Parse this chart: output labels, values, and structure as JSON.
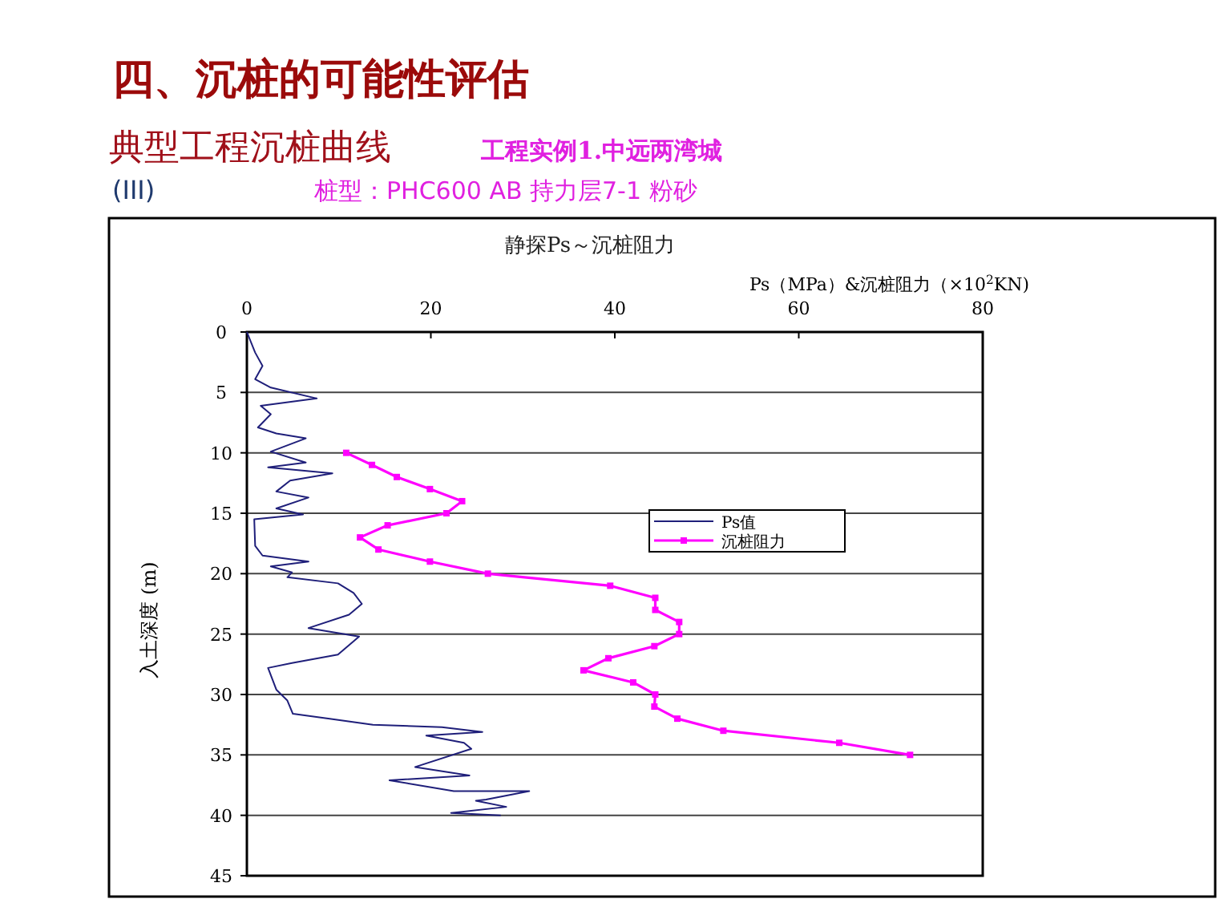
{
  "chart_data": {
    "type": "line",
    "title": "四、沉桩的可能性评估",
    "subtitle": "典型工程沉桩曲线",
    "annotations": [
      "工程实例1.中远两湾城",
      "(III)",
      "桩型：PHC600 AB   持力层7-1   粉砂",
      "静探Ps～沉桩阻力"
    ],
    "xlabel": "Ps（MPa）&沉桩阻力（×10$^{2}$KN)",
    "ylabel": "入土深度 (m)",
    "xlim": [
      0,
      80
    ],
    "xticks": [
      0,
      20,
      40,
      60,
      80
    ],
    "ylim": [
      45,
      0
    ],
    "yticks": [
      0,
      5,
      10,
      15,
      20,
      25,
      30,
      35,
      40,
      45
    ],
    "grid": "y",
    "legend": "right",
    "series": [
      {
        "name": "Ps值",
        "color": "#1f1f7a",
        "marker": "none",
        "x": [
          0,
          0.9,
          1.7,
          0.9,
          2.6,
          7.6,
          1.5,
          2.6,
          1.2,
          3.2,
          6.4,
          2.6,
          6.4,
          2.3,
          9.3,
          4.7,
          3.2,
          6.7,
          3.2,
          6.1,
          0.8,
          0.9,
          1.7,
          6.7,
          2.6,
          4.9,
          4.4,
          9.9,
          11.6,
          12.5,
          11.1,
          6.7,
          12.2,
          9.9,
          4.9,
          2.3,
          3.2,
          4.4,
          5.0,
          9.0,
          13.7,
          21.2,
          25.6,
          19.5,
          23.6,
          24.4,
          18.3,
          24.2,
          15.5,
          22.5,
          30.7,
          26.0,
          24.9,
          28.2,
          22.2,
          27.6
        ],
        "values": [
          0,
          1.7,
          2.8,
          3.9,
          4.6,
          5.5,
          6.1,
          6.8,
          7.9,
          8.4,
          8.8,
          9.9,
          10.8,
          11.2,
          11.7,
          12.3,
          13.2,
          13.7,
          14.6,
          15.1,
          15.5,
          17.7,
          18.5,
          19.0,
          19.4,
          19.9,
          20.3,
          20.8,
          21.6,
          22.5,
          23.4,
          24.5,
          25.2,
          26.7,
          27.4,
          27.8,
          29.6,
          30.5,
          31.6,
          32.0,
          32.5,
          32.7,
          33.1,
          33.4,
          34.0,
          34.5,
          36.0,
          36.7,
          37.1,
          38.0,
          38.0,
          38.7,
          38.8,
          39.3,
          39.8,
          40.0
        ]
      },
      {
        "name": "沉桩阻力",
        "color": "#ff00ff",
        "marker": "square",
        "x": [
          10.8,
          13.6,
          16.3,
          19.9,
          23.4,
          21.7,
          15.3,
          12.3,
          14.3,
          19.9,
          26.2,
          39.5,
          44.4,
          44.4,
          47.0,
          47.0,
          44.3,
          39.3,
          36.6,
          42.0,
          44.4,
          44.3,
          46.8,
          51.8,
          64.4,
          72.1
        ],
        "values": [
          10,
          11,
          12,
          13,
          14,
          15,
          16,
          17,
          18,
          19,
          20,
          21,
          22,
          23,
          24,
          25,
          26,
          27,
          28,
          29,
          30,
          31,
          32,
          33,
          34,
          35
        ]
      }
    ]
  }
}
